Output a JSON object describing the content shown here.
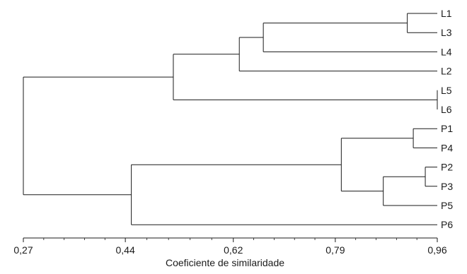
{
  "chart_data": {
    "type": "dendrogram",
    "xlabel": "Coeficiente de similaridade",
    "xlim": [
      0.27,
      0.96
    ],
    "xticks": [
      "0,27",
      "0,44",
      "0,62",
      "0,79",
      "0,96"
    ],
    "xtick_values": [
      0.27,
      0.44,
      0.62,
      0.79,
      0.96
    ],
    "leaves": [
      "L1",
      "L3",
      "L4",
      "L2",
      "L5",
      "L6",
      "P1",
      "P4",
      "P2",
      "P3",
      "P5",
      "P6"
    ],
    "merges": [
      {
        "id": "a",
        "children": [
          "L1",
          "L3"
        ],
        "similarity": 0.91
      },
      {
        "id": "b",
        "children": [
          "a",
          "L4"
        ],
        "similarity": 0.67
      },
      {
        "id": "c",
        "children": [
          "b",
          "L2"
        ],
        "similarity": 0.63
      },
      {
        "id": "d",
        "children": [
          "L5",
          "L6"
        ],
        "similarity": 0.96
      },
      {
        "id": "e",
        "children": [
          "c",
          "d"
        ],
        "similarity": 0.52
      },
      {
        "id": "f",
        "children": [
          "P1",
          "P4"
        ],
        "similarity": 0.92
      },
      {
        "id": "g",
        "children": [
          "P2",
          "P3"
        ],
        "similarity": 0.94
      },
      {
        "id": "h",
        "children": [
          "g",
          "P5"
        ],
        "similarity": 0.87
      },
      {
        "id": "i",
        "children": [
          "f",
          "h"
        ],
        "similarity": 0.8
      },
      {
        "id": "j",
        "children": [
          "i",
          "P6"
        ],
        "similarity": 0.45
      },
      {
        "id": "k",
        "children": [
          "e",
          "j"
        ],
        "similarity": 0.27
      }
    ]
  }
}
